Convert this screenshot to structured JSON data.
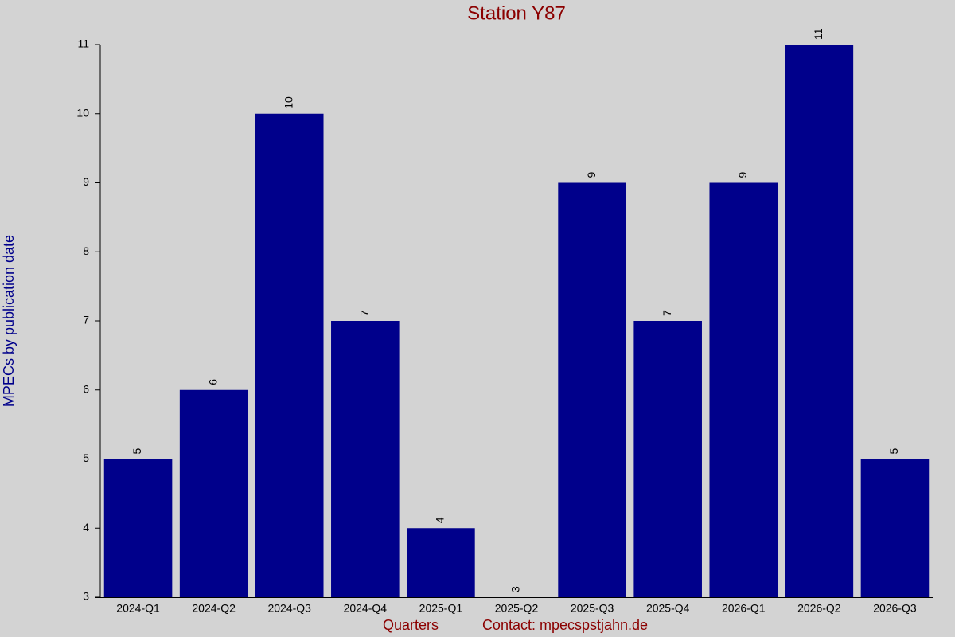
{
  "chart_data": {
    "type": "bar",
    "title": "Station Y87",
    "ylabel": "MPECs by publication date",
    "xlabel": "Quarters",
    "annotation": "Contact: mpecspstjahn.de",
    "categories": [
      "2024-Q1",
      "2024-Q2",
      "2024-Q3",
      "2024-Q4",
      "2025-Q1",
      "2025-Q2",
      "2025-Q3",
      "2025-Q4",
      "2026-Q1",
      "2026-Q2",
      "2026-Q3"
    ],
    "values": [
      5,
      6,
      10,
      7,
      4,
      3,
      9,
      7,
      9,
      11,
      5
    ],
    "color": "#00008b",
    "ylim": [
      3,
      11
    ],
    "yticks": [
      3,
      4,
      5,
      6,
      7,
      8,
      9,
      10,
      11
    ]
  }
}
